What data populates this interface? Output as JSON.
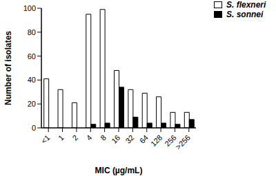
{
  "chart_data": {
    "type": "bar",
    "x_label": "MIC (µg/mL)",
    "y_label": "Number of isolates",
    "categories": [
      "<1",
      "1",
      "2",
      "4",
      "8",
      "16",
      "32",
      "64",
      "128",
      "256",
      ">256"
    ],
    "series": [
      {
        "name": "S. flexneri",
        "color": "#ffffff",
        "values": [
          41,
          32,
          21,
          95,
          99,
          48,
          32,
          29,
          26,
          13,
          13
        ]
      },
      {
        "name": "S. sonnei",
        "color": "#000000",
        "values": [
          0,
          0,
          0,
          3,
          4,
          34,
          9,
          4,
          4,
          3,
          7
        ]
      }
    ],
    "ylim": [
      0,
      100
    ],
    "yticks": [
      0,
      20,
      40,
      60,
      80,
      100
    ],
    "grid": false,
    "legend": "top right"
  }
}
